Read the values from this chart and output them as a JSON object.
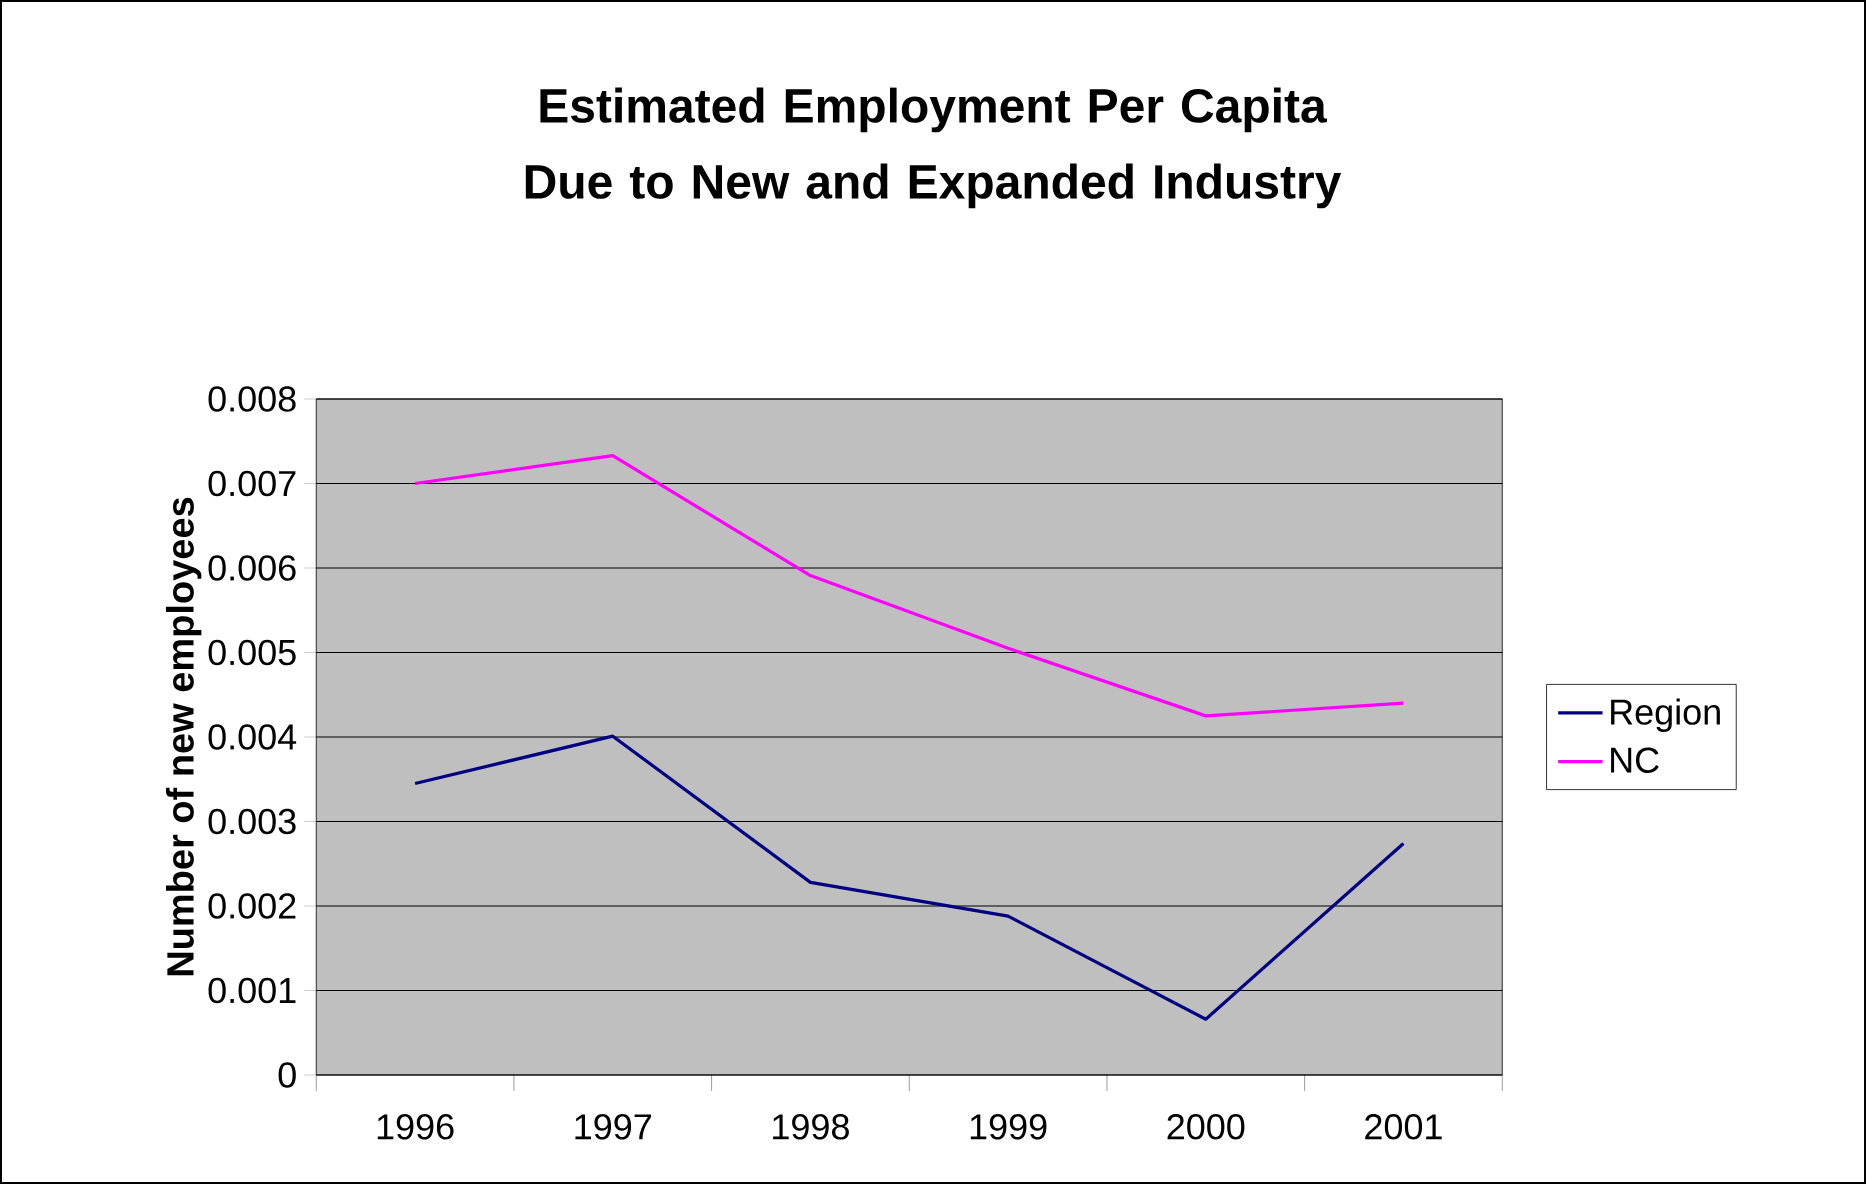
{
  "chart_data": {
    "type": "line",
    "title": "Estimated Employment Per Capita Due to New and Expanded Industry",
    "ylabel": "Number of new employees",
    "categories": [
      "1996",
      "1997",
      "1998",
      "1999",
      "2000",
      "2001"
    ],
    "series": [
      {
        "name": "Region",
        "color": "#000080",
        "values": [
          0.00345,
          0.00401,
          0.00228,
          0.00188,
          0.00066,
          0.00274
        ]
      },
      {
        "name": "NC",
        "color": "#ff00ff",
        "values": [
          0.007,
          0.00733,
          0.00591,
          0.00505,
          0.00425,
          0.0044
        ]
      }
    ],
    "ylim": [
      0,
      0.008
    ],
    "yticks": [
      0,
      0.001,
      0.002,
      0.003,
      0.004,
      0.005,
      0.006,
      0.007,
      0.008
    ],
    "grid": "y",
    "legend": "right",
    "marker": "none",
    "line_style": "solid"
  }
}
